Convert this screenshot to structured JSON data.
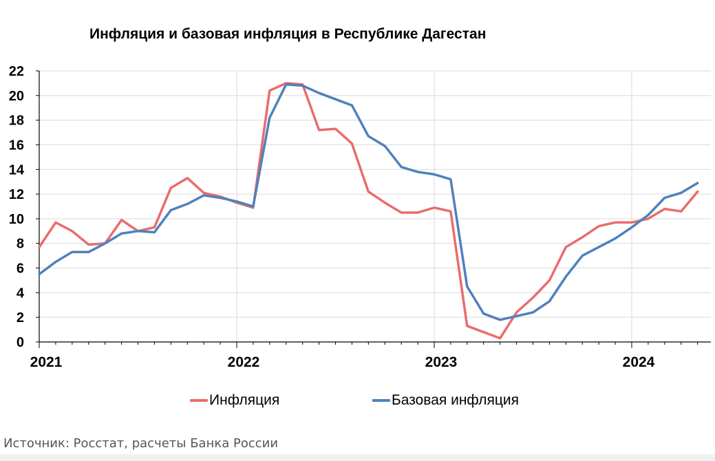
{
  "chart_data": {
    "type": "line",
    "title": "Инфляция и базовая инфляция в Республике Дагестан",
    "xlabel": "",
    "ylabel": "",
    "ylim": [
      0,
      22
    ],
    "yticks": [
      "0",
      "2",
      "4",
      "6",
      "8",
      "10",
      "12",
      "14",
      "16",
      "18",
      "20",
      "22"
    ],
    "xticks": [
      "2021",
      "2022",
      "2023",
      "2024"
    ],
    "x": [
      "2021-01",
      "2021-02",
      "2021-03",
      "2021-04",
      "2021-05",
      "2021-06",
      "2021-07",
      "2021-08",
      "2021-09",
      "2021-10",
      "2021-11",
      "2021-12",
      "2022-01",
      "2022-02",
      "2022-03",
      "2022-04",
      "2022-05",
      "2022-06",
      "2022-07",
      "2022-08",
      "2022-09",
      "2022-10",
      "2022-11",
      "2022-12",
      "2023-01",
      "2023-02",
      "2023-03",
      "2023-04",
      "2023-05",
      "2023-06",
      "2023-07",
      "2023-08",
      "2023-09",
      "2023-10",
      "2023-11",
      "2023-12",
      "2024-01",
      "2024-02",
      "2024-03",
      "2024-04",
      "2024-05"
    ],
    "grid": true,
    "legend_position": "bottom",
    "series": [
      {
        "name": "Инфляция",
        "color": "#e96c6e",
        "values": [
          7.7,
          9.7,
          9.0,
          7.9,
          8.0,
          9.9,
          9.0,
          9.3,
          12.5,
          13.3,
          12.1,
          11.8,
          11.3,
          10.9,
          20.4,
          21.0,
          20.9,
          17.2,
          17.3,
          16.1,
          12.2,
          11.3,
          10.5,
          10.5,
          10.9,
          10.6,
          1.3,
          0.8,
          0.3,
          2.4,
          3.6,
          5.0,
          7.7,
          8.5,
          9.4,
          9.7,
          9.7,
          10.0,
          10.8,
          10.6,
          12.2
        ]
      },
      {
        "name": "Базовая инфляция",
        "color": "#4f81bd",
        "values": [
          5.5,
          6.5,
          7.3,
          7.3,
          8.0,
          8.8,
          9.0,
          8.9,
          10.7,
          11.2,
          11.9,
          11.7,
          11.4,
          11.0,
          18.2,
          20.9,
          20.8,
          20.2,
          19.7,
          19.2,
          16.7,
          15.9,
          14.2,
          13.8,
          13.6,
          13.2,
          4.5,
          2.3,
          1.8,
          2.1,
          2.4,
          3.3,
          5.3,
          7.0,
          7.7,
          8.4,
          9.3,
          10.3,
          11.7,
          12.1,
          12.9
        ]
      }
    ]
  },
  "source_note": "Источник: Росстат, расчеты Банка России"
}
